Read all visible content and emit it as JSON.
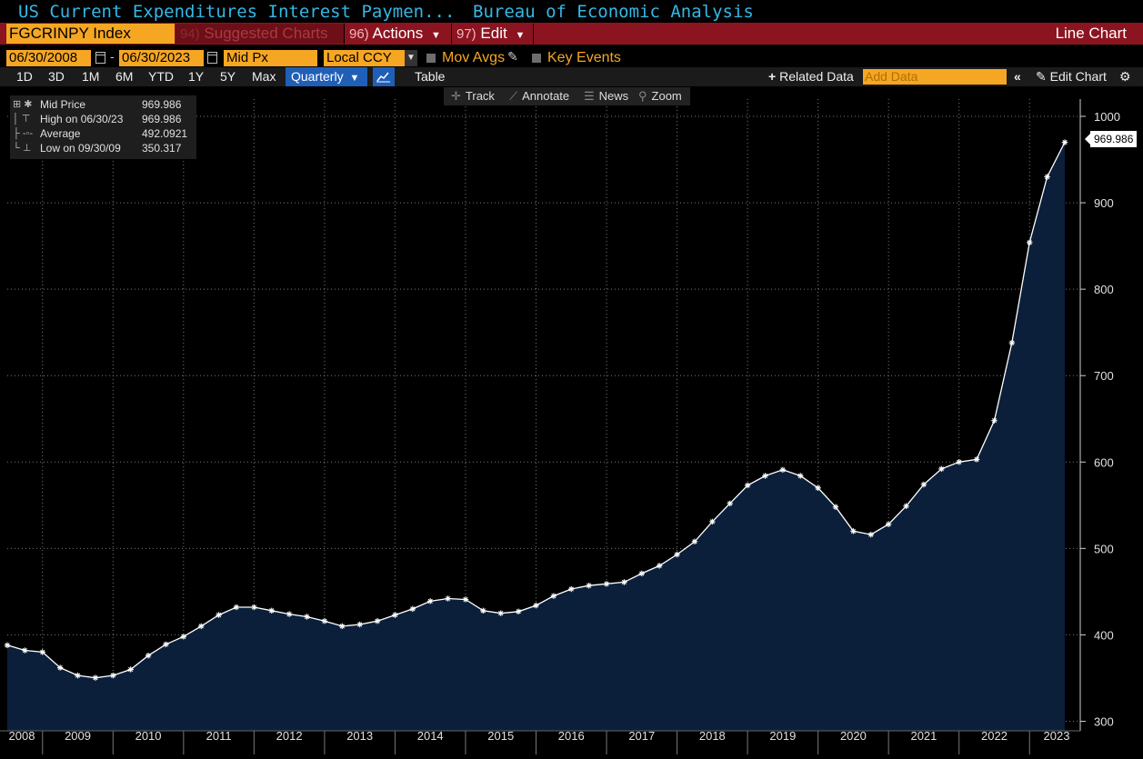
{
  "title": {
    "main": "US Current Expenditures Interest Paymen...",
    "source": "Bureau of Economic Analysis"
  },
  "menu": {
    "ticker": "FGCRINPY Index",
    "suggested_num": "94)",
    "suggested_label": "Suggested Charts",
    "actions_num": "96)",
    "actions_label": "Actions",
    "edit_num": "97)",
    "edit_label": "Edit",
    "chart_type": "Line Chart"
  },
  "controls": {
    "start_date": "06/30/2008",
    "end_date": "06/30/2023",
    "field": "Mid Px",
    "currency": "Local CCY",
    "mov_avgs": "Mov Avgs",
    "key_events": "Key Events"
  },
  "range": {
    "buttons": [
      "1D",
      "3D",
      "1M",
      "6M",
      "YTD",
      "1Y",
      "5Y",
      "Max"
    ],
    "period": "Quarterly",
    "table": "Table",
    "related": "Related Data",
    "add_data_placeholder": "Add Data",
    "edit_chart": "Edit Chart"
  },
  "legend": [
    {
      "name": "Mid Price",
      "value": "969.986",
      "icon": "asterisk-icon"
    },
    {
      "name": "High on 06/30/23",
      "value": "969.986",
      "icon": "high-marker-icon"
    },
    {
      "name": "Average",
      "value": "492.0921",
      "icon": "average-line-icon"
    },
    {
      "name": "Low on 09/30/09",
      "value": "350.317",
      "icon": "low-marker-icon"
    }
  ],
  "chart_tools": [
    "Track",
    "Annotate",
    "News",
    "Zoom"
  ],
  "last_value": "969.986",
  "colors": {
    "title": "#35b7e6",
    "menu_bg": "#8c1420",
    "field_bg": "#f5a623",
    "area_fill": "#0b1f3a",
    "line": "#ffffff",
    "period_btn": "#1f5fb8"
  },
  "chart_data": {
    "type": "area",
    "series": [
      {
        "name": "Mid Price",
        "x": [
          "2008Q2",
          "2008Q3",
          "2008Q4",
          "2009Q1",
          "2009Q2",
          "2009Q3",
          "2009Q4",
          "2010Q1",
          "2010Q2",
          "2010Q3",
          "2010Q4",
          "2011Q1",
          "2011Q2",
          "2011Q3",
          "2011Q4",
          "2012Q1",
          "2012Q2",
          "2012Q3",
          "2012Q4",
          "2013Q1",
          "2013Q2",
          "2013Q3",
          "2013Q4",
          "2014Q1",
          "2014Q2",
          "2014Q3",
          "2014Q4",
          "2015Q1",
          "2015Q2",
          "2015Q3",
          "2015Q4",
          "2016Q1",
          "2016Q2",
          "2016Q3",
          "2016Q4",
          "2017Q1",
          "2017Q2",
          "2017Q3",
          "2017Q4",
          "2018Q1",
          "2018Q2",
          "2018Q3",
          "2018Q4",
          "2019Q1",
          "2019Q2",
          "2019Q3",
          "2019Q4",
          "2020Q1",
          "2020Q2",
          "2020Q3",
          "2020Q4",
          "2021Q1",
          "2021Q2",
          "2021Q3",
          "2021Q4",
          "2022Q1",
          "2022Q2",
          "2022Q3",
          "2022Q4",
          "2023Q1",
          "2023Q2"
        ],
        "values": [
          388,
          382,
          380,
          362,
          353,
          350.317,
          353,
          360,
          376,
          389,
          398,
          410,
          423,
          432,
          432,
          428,
          424,
          421,
          416,
          410,
          412,
          416,
          423,
          430,
          439,
          442,
          441,
          428,
          425,
          427,
          434,
          445,
          453,
          457,
          459,
          461,
          471,
          480,
          493,
          508,
          531,
          552,
          573,
          584,
          591,
          584,
          570,
          548,
          520,
          516,
          528,
          549,
          574,
          592,
          600,
          603,
          648,
          738,
          854,
          930,
          969.986
        ]
      }
    ],
    "xlabel": "",
    "ylabel": "",
    "x_ticks": [
      "2008",
      "2009",
      "2010",
      "2011",
      "2012",
      "2013",
      "2014",
      "2015",
      "2016",
      "2017",
      "2018",
      "2019",
      "2020",
      "2021",
      "2022",
      "2023"
    ],
    "y_ticks": [
      300,
      400,
      500,
      600,
      700,
      800,
      900,
      1000
    ],
    "ylim": [
      300,
      1000
    ],
    "grid": true,
    "y_axis_side": "right",
    "legend_position": "top-left"
  }
}
